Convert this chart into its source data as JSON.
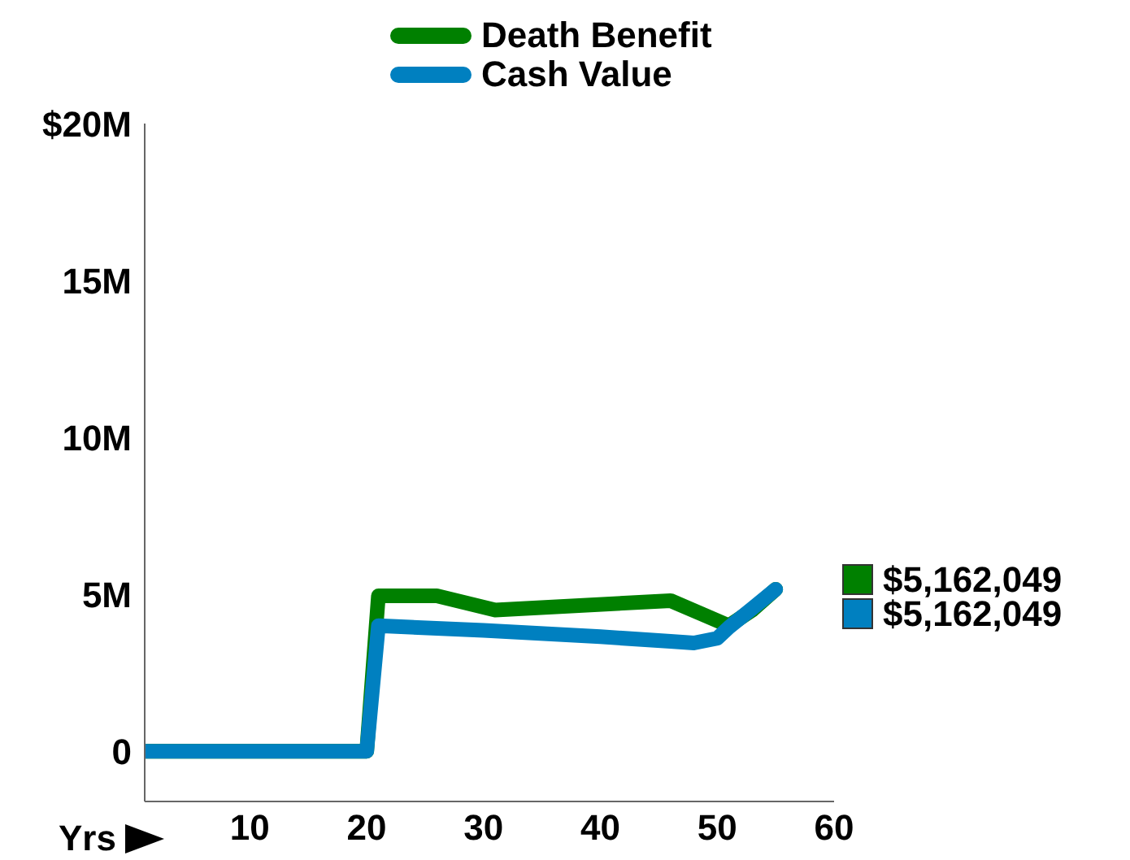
{
  "chart_data": {
    "type": "line",
    "xlabel": "Yrs",
    "legend": "top",
    "grid": false,
    "marker": "none",
    "line_style": "solid",
    "xlim": [
      1,
      60
    ],
    "xticks": [
      10,
      20,
      30,
      40,
      50,
      60
    ],
    "ylim": [
      -1600000,
      20000000
    ],
    "yticks": [
      {
        "value": 0,
        "label": "0"
      },
      {
        "value": 5000000,
        "label": "5M"
      },
      {
        "value": 10000000,
        "label": "10M"
      },
      {
        "value": 15000000,
        "label": "15M"
      },
      {
        "value": 20000000,
        "label": "$20M"
      }
    ],
    "series": [
      {
        "name": "Death Benefit",
        "color": "#008000",
        "x": [
          1,
          20,
          21,
          26,
          31,
          46,
          51,
          53,
          55
        ],
        "values": [
          0,
          0,
          4950000,
          4950000,
          4500000,
          4800000,
          4000000,
          4500000,
          5160000
        ]
      },
      {
        "name": "Cash Value",
        "color": "#0080c0",
        "x": [
          1,
          20,
          21,
          30,
          40,
          46,
          48,
          50,
          51,
          53,
          55
        ],
        "values": [
          0,
          0,
          4000000,
          3850000,
          3650000,
          3500000,
          3450000,
          3600000,
          3950000,
          4550000,
          5160000
        ]
      }
    ],
    "annotations": [
      "$5,162,049",
      "$5,162,049"
    ]
  }
}
